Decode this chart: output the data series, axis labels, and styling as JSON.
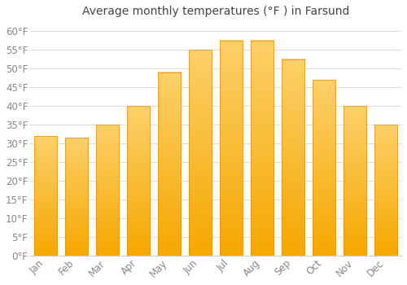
{
  "title": "Average monthly temperatures (°F ) in Farsund",
  "months": [
    "Jan",
    "Feb",
    "Mar",
    "Apr",
    "May",
    "Jun",
    "Jul",
    "Aug",
    "Sep",
    "Oct",
    "Nov",
    "Dec"
  ],
  "values": [
    32,
    31.5,
    35,
    40,
    49,
    55,
    57.5,
    57.5,
    52.5,
    47,
    40,
    35
  ],
  "bar_color_top": "#F5A800",
  "bar_color_bottom": "#FDD06A",
  "bar_edge_color": "#E09010",
  "background_color": "#ffffff",
  "grid_color": "#dddddd",
  "ylim": [
    0,
    62
  ],
  "yticks": [
    0,
    5,
    10,
    15,
    20,
    25,
    30,
    35,
    40,
    45,
    50,
    55,
    60
  ],
  "title_fontsize": 10,
  "tick_fontsize": 8.5,
  "tick_color": "#888888",
  "bar_width": 0.75
}
